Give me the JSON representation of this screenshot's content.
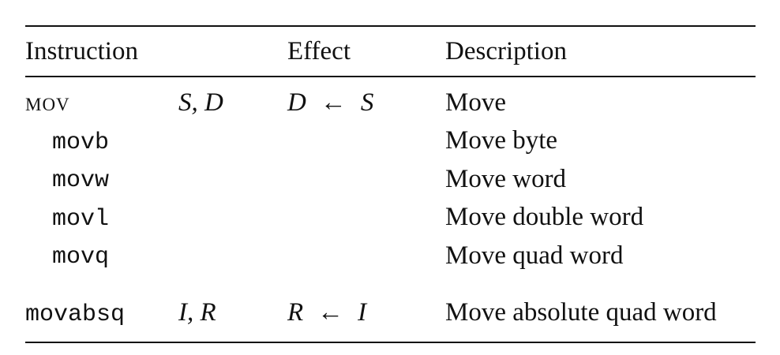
{
  "table": {
    "headers": {
      "instruction": "Instruction",
      "effect": "Effect",
      "description": "Description"
    },
    "rows": [
      {
        "instruction": "MOV",
        "operands": "S, D",
        "effect_dest": "D",
        "effect_arrow": "←",
        "effect_src": "S",
        "description": "Move"
      },
      {
        "instruction": "movb",
        "description": "Move byte"
      },
      {
        "instruction": "movw",
        "description": "Move word"
      },
      {
        "instruction": "movl",
        "description": "Move double word"
      },
      {
        "instruction": "movq",
        "description": "Move quad word"
      },
      {
        "instruction": "movabsq",
        "operands": "I, R",
        "effect_dest": "R",
        "effect_arrow": "←",
        "effect_src": "I",
        "description": "Move absolute quad word"
      }
    ]
  }
}
